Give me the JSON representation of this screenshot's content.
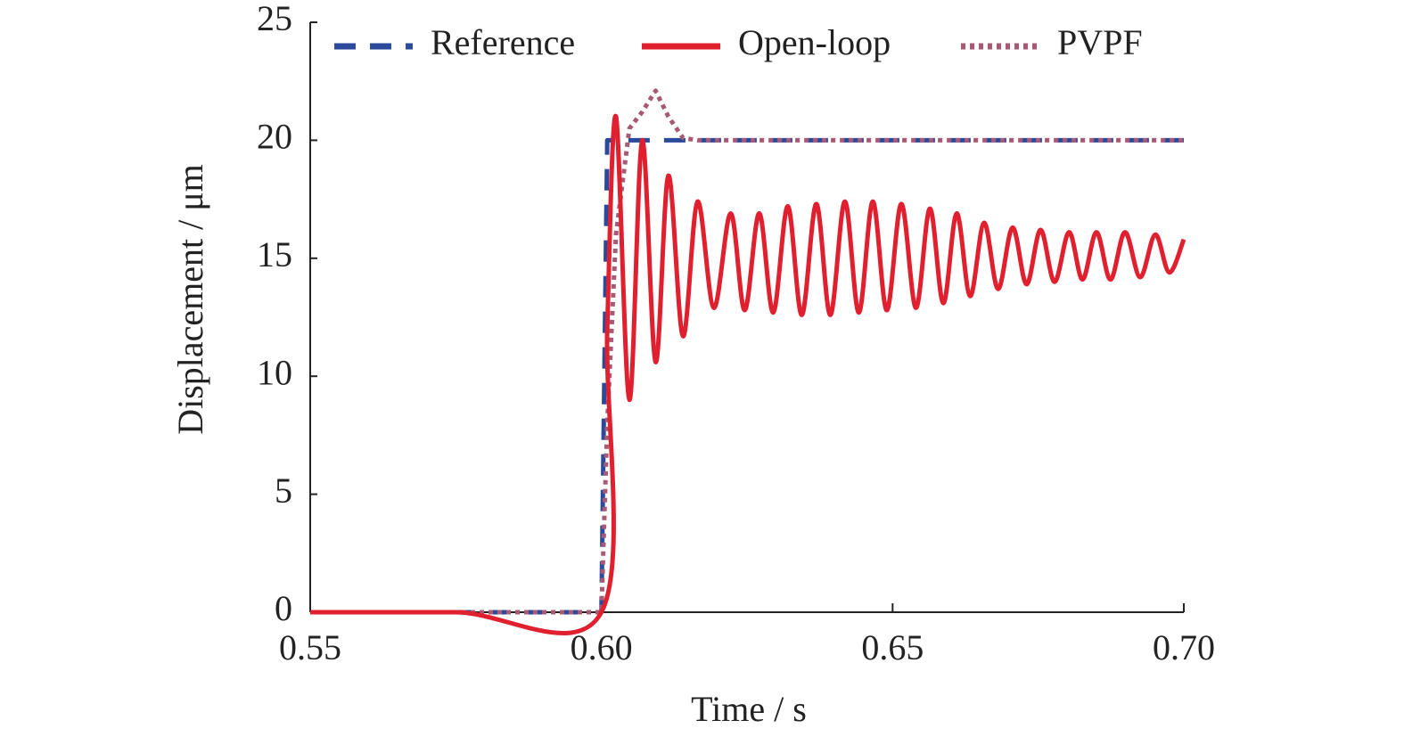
{
  "chart_data": {
    "type": "line",
    "x_label": "Time / s",
    "y_label": "Displacement / μm",
    "x": [
      0.55,
      0.575,
      0.6,
      0.601,
      0.6025,
      0.6048,
      0.607,
      0.6093,
      0.6115,
      0.614,
      0.6165,
      0.6193,
      0.6222,
      0.6246,
      0.6271,
      0.6295,
      0.632,
      0.6344,
      0.6369,
      0.6393,
      0.6418,
      0.6442,
      0.6466,
      0.649,
      0.6515,
      0.654,
      0.6564,
      0.6587,
      0.661,
      0.6633,
      0.6657,
      0.6681,
      0.6706,
      0.673,
      0.6754,
      0.6778,
      0.6803,
      0.6826,
      0.685,
      0.6874,
      0.6899,
      0.6925,
      0.6951,
      0.6975,
      0.7
    ],
    "series": [
      {
        "name": "Reference",
        "color": "#2b4a9c",
        "dash": "dashed",
        "values": [
          0,
          0,
          0,
          20,
          20,
          20,
          20,
          20,
          20,
          20,
          20,
          20,
          20,
          20,
          20,
          20,
          20,
          20,
          20,
          20,
          20,
          20,
          20,
          20,
          20,
          20,
          20,
          20,
          20,
          20,
          20,
          20,
          20,
          20,
          20,
          20,
          20,
          20,
          20,
          20,
          20,
          20,
          20,
          20,
          20
        ]
      },
      {
        "name": "Open-loop",
        "color": "#e0202e",
        "dash": "solid",
        "values": [
          0,
          0,
          0,
          12,
          21,
          9,
          20,
          10.6,
          18.5,
          11.7,
          17.4,
          12.9,
          16.9,
          12.8,
          16.9,
          12.7,
          17.2,
          12.6,
          17.3,
          12.6,
          17.4,
          12.7,
          17.4,
          12.8,
          17.3,
          12.9,
          17.1,
          13.1,
          16.9,
          13.4,
          16.5,
          13.7,
          16.3,
          13.9,
          16.2,
          14.0,
          16.1,
          14.1,
          16.1,
          14.1,
          16.1,
          14.2,
          16.0,
          14.4,
          15.8
        ]
      },
      {
        "name": "PVPF",
        "color": "#a65a76",
        "dash": "dotted",
        "values": [
          0,
          0,
          0,
          8,
          16,
          20.5,
          21.2,
          22.1,
          21,
          20.1,
          20,
          20,
          20,
          20,
          20,
          20,
          20,
          20,
          20,
          20,
          20,
          20,
          20,
          20,
          20,
          20,
          20,
          20,
          20,
          20,
          20,
          20,
          20,
          20,
          20,
          20,
          20,
          20,
          20,
          20,
          20,
          20,
          20,
          20,
          20
        ]
      }
    ],
    "xlim": [
      0.55,
      0.7
    ],
    "xticks": [
      0.55,
      {
        "value": 0.6,
        "label": "0.60"
      },
      0.65,
      {
        "value": 0.7,
        "label": "0.70"
      }
    ],
    "ylim": [
      0,
      25
    ],
    "yticks": [
      0,
      5,
      10,
      15,
      20,
      25
    ],
    "grid": false,
    "legend": "top"
  }
}
